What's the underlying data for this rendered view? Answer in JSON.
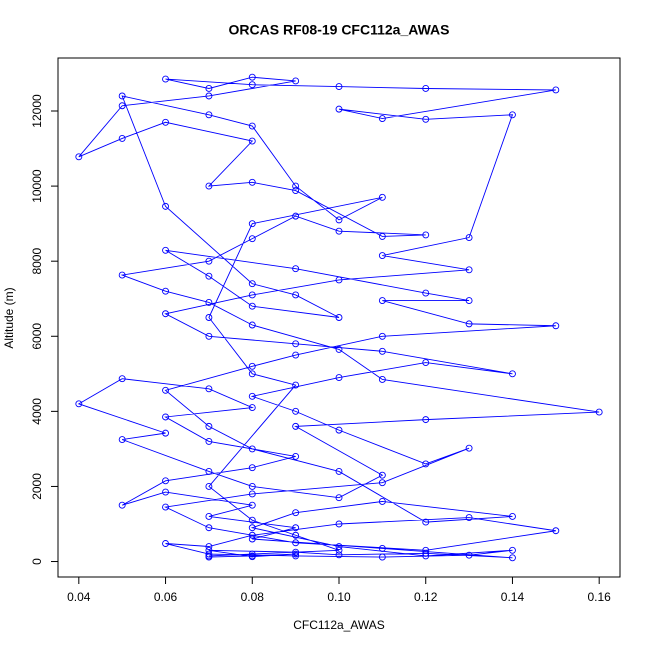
{
  "chart_data": {
    "type": "line",
    "title": "ORCAS RF08-19 CFC112a_AWAS",
    "xlabel": "CFC112a_AWAS",
    "ylabel": "Altitude (m)",
    "color": "#0000ff",
    "marker": "circle",
    "x": [
      0.07,
      0.08,
      0.09,
      0.08,
      0.07,
      0.09,
      0.1,
      0.12,
      0.14,
      0.11,
      0.08,
      0.09,
      0.07,
      0.08,
      0.06,
      0.05,
      0.06,
      0.08,
      0.09,
      0.07,
      0.06,
      0.08,
      0.07,
      0.05,
      0.04,
      0.06,
      0.05,
      0.07,
      0.08,
      0.1,
      0.11,
      0.09,
      0.12,
      0.16,
      0.11,
      0.1,
      0.08,
      0.07,
      0.06,
      0.05,
      0.07,
      0.08,
      0.09,
      0.1,
      0.12,
      0.11,
      0.09,
      0.08,
      0.07,
      0.08,
      0.06,
      0.05,
      0.04,
      0.05,
      0.07,
      0.09,
      0.08,
      0.07,
      0.06,
      0.08,
      0.1,
      0.12,
      0.15,
      0.11,
      0.1,
      0.12,
      0.14,
      0.13,
      0.11,
      0.13,
      0.1,
      0.08,
      0.06,
      0.07,
      0.09,
      0.11,
      0.14,
      0.12,
      0.1,
      0.08,
      0.09,
      0.1,
      0.12,
      0.13,
      0.11,
      0.08,
      0.06,
      0.07,
      0.09,
      0.12,
      0.15,
      0.13,
      0.1,
      0.08,
      0.07,
      0.06,
      0.07,
      0.09,
      0.11,
      0.13,
      0.14,
      0.12,
      0.1,
      0.08,
      0.09,
      0.11,
      0.14,
      0.12,
      0.1,
      0.08,
      0.07,
      0.06,
      0.08,
      0.09,
      0.11,
      0.15,
      0.13,
      0.11,
      0.13,
      0.12,
      0.09,
      0.06,
      0.07,
      0.08,
      0.1,
      0.09,
      0.08,
      0.06,
      0.05,
      0.07,
      0.08,
      0.09,
      0.1,
      0.11,
      0.08,
      0.07,
      0.08,
      0.09,
      0.07,
      0.08,
      0.09,
      0.1,
      0.08,
      0.07
    ],
    "values": [
      120,
      150,
      200,
      130,
      300,
      250,
      180,
      220,
      100,
      350,
      600,
      900,
      1200,
      1500,
      1850,
      1500,
      2150,
      2500,
      2800,
      3200,
      3850,
      4100,
      4600,
      4870,
      4200,
      3420,
      3250,
      2400,
      2000,
      1700,
      2300,
      3600,
      3780,
      3980,
      4850,
      5650,
      6300,
      6900,
      7200,
      7630,
      8000,
      8600,
      9200,
      8800,
      8700,
      8660,
      9880,
      10100,
      10000,
      11200,
      11700,
      11270,
      10780,
      12140,
      12400,
      12800,
      12900,
      12600,
      12850,
      12700,
      12650,
      12600,
      12560,
      11800,
      12050,
      11780,
      11900,
      8630,
      8150,
      7770,
      7500,
      7100,
      6600,
      6000,
      5800,
      5600,
      5000,
      5300,
      4900,
      4400,
      4000,
      3500,
      2600,
      3020,
      2100,
      1800,
      1450,
      900,
      500,
      300,
      820,
      1170,
      1000,
      700,
      400,
      480,
      200,
      150,
      120,
      170,
      300,
      150,
      400,
      900,
      1300,
      1600,
      1200,
      1050,
      2400,
      3000,
      3600,
      4560,
      5200,
      5500,
      6000,
      6280,
      6330,
      6950,
      6950,
      7150,
      7800,
      8290,
      7600,
      6800,
      6500,
      7100,
      7400,
      9460,
      12400,
      11900,
      11600,
      10000,
      9100,
      9700,
      9000,
      6500,
      5000,
      4700,
      2000,
      1100,
      700,
      300,
      200,
      150
    ],
    "xlim": [
      0.0352,
      0.1648
    ],
    "ylim": [
      -412,
      13412
    ],
    "xticks": [
      0.04,
      0.06,
      0.08,
      {
        "value": 0.1,
        "label": "0.10"
      },
      0.12,
      0.14,
      0.16
    ],
    "yticks": [
      0,
      2000,
      4000,
      6000,
      8000,
      10000,
      12000
    ]
  }
}
